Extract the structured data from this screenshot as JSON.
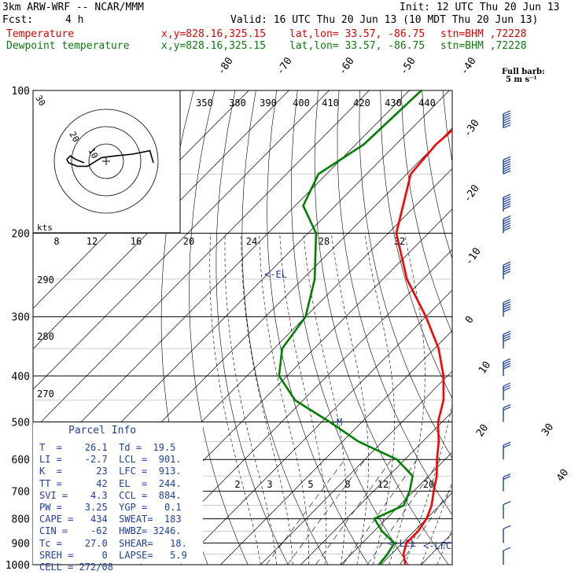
{
  "header": {
    "model": "3km ARW-WRF -- NCAR/MMM",
    "init": "Init: 12 UTC Thu 20 Jun 13",
    "fcst_label": "Fcst:",
    "fcst_value": "4 h",
    "valid": "Valid: 16 UTC Thu 20 Jun 13 (10 MDT Thu 20 Jun 13)",
    "temp_line": {
      "name": "Temperature",
      "xy": "x,y=828.16,325.15",
      "latlon": "lat,lon= 33.57, -86.75",
      "stn": "stn=BHM ,72228"
    },
    "dew_line": {
      "name": "Dewpoint temperature",
      "xy": "x,y=828.16,325.15",
      "latlon": "lat,lon= 33.57, -86.75",
      "stn": "stn=BHM ,72228"
    },
    "barb_label_1": "Full barb:",
    "barb_label_2": "5 m s⁻¹"
  },
  "chart_data": {
    "type": "line",
    "pressure_levels": [
      100,
      200,
      300,
      400,
      500,
      600,
      700,
      800,
      900,
      1000
    ],
    "pressure_labels": [
      "100",
      "200",
      "300",
      "400",
      "500",
      "600",
      "700",
      "800",
      "900",
      "1000"
    ],
    "isotherm_labels": [
      "-80",
      "-70",
      "-60",
      "-50",
      "-40",
      "-30",
      "-20",
      "-10",
      "0",
      "10",
      "20",
      "30",
      "40"
    ],
    "theta_labels_top": [
      "350",
      "380",
      "390",
      "400",
      "410",
      "420",
      "430",
      "440"
    ],
    "mixing_ratio_labels": [
      "2",
      "3",
      "5",
      "8",
      "12",
      "20"
    ],
    "moist_adiabat_labels": [
      "8",
      "12",
      "16",
      "20",
      "24",
      "28",
      "32"
    ],
    "theta_labels_left": [
      "290",
      "280",
      "270"
    ],
    "kts_label": "kts",
    "hodo_labels": [
      "30",
      "20",
      "10"
    ],
    "markers": {
      "el": "<-EL",
      "lcl": "<-LCL",
      "lfc": "<-LFC",
      "m": "M"
    },
    "series": [
      {
        "name": "Temperature",
        "color": "#ff0000",
        "points": [
          [
            100,
            -68
          ],
          [
            130,
            -70
          ],
          [
            150,
            -69
          ],
          [
            200,
            -58
          ],
          [
            250,
            -44
          ],
          [
            300,
            -30
          ],
          [
            350,
            -19
          ],
          [
            400,
            -11
          ],
          [
            450,
            -5
          ],
          [
            500,
            -1
          ],
          [
            550,
            4
          ],
          [
            600,
            8
          ],
          [
            650,
            12
          ],
          [
            700,
            15
          ],
          [
            750,
            18
          ],
          [
            800,
            20
          ],
          [
            850,
            21
          ],
          [
            900,
            21
          ],
          [
            950,
            23
          ],
          [
            1000,
            26.1
          ]
        ]
      },
      {
        "name": "Dewpoint temperature",
        "color": "#008000",
        "points": [
          [
            100,
            -87
          ],
          [
            130,
            -88
          ],
          [
            150,
            -92
          ],
          [
            175,
            -88
          ],
          [
            200,
            -78
          ],
          [
            250,
            -67
          ],
          [
            300,
            -60
          ],
          [
            350,
            -58
          ],
          [
            400,
            -52
          ],
          [
            450,
            -42
          ],
          [
            500,
            -28
          ],
          [
            550,
            -16
          ],
          [
            600,
            -2
          ],
          [
            650,
            6
          ],
          [
            700,
            9
          ],
          [
            750,
            11
          ],
          [
            800,
            7
          ],
          [
            850,
            12
          ],
          [
            900,
            18
          ],
          [
            950,
            19
          ],
          [
            1000,
            19.5
          ]
        ]
      }
    ],
    "wind_barbs": [
      {
        "p": 120,
        "speed_ms": 35
      },
      {
        "p": 150,
        "speed_ms": 35
      },
      {
        "p": 180,
        "speed_ms": 30
      },
      {
        "p": 200,
        "speed_ms": 30
      },
      {
        "p": 250,
        "speed_ms": 25
      },
      {
        "p": 300,
        "speed_ms": 25
      },
      {
        "p": 350,
        "speed_ms": 20
      },
      {
        "p": 400,
        "speed_ms": 20
      },
      {
        "p": 450,
        "speed_ms": 15
      },
      {
        "p": 500,
        "speed_ms": 10
      },
      {
        "p": 600,
        "speed_ms": 10
      },
      {
        "p": 700,
        "speed_ms": 10
      },
      {
        "p": 800,
        "speed_ms": 5
      },
      {
        "p": 900,
        "speed_ms": 5
      },
      {
        "p": 1000,
        "speed_ms": 5
      }
    ],
    "hodograph": [
      [
        0,
        0
      ],
      [
        -5,
        2
      ],
      [
        -8,
        4
      ],
      [
        -10,
        2
      ],
      [
        -9,
        0
      ],
      [
        -4,
        -2
      ],
      [
        2,
        -2
      ],
      [
        10,
        3
      ],
      [
        18,
        4
      ],
      [
        28,
        5
      ],
      [
        38,
        7
      ],
      [
        40,
        0
      ]
    ]
  },
  "parcel_info": {
    "title": "Parcel Info",
    "rows": [
      "T  =    26.1  Td =  19.5",
      "LI =    -2.7  LCL =  901.",
      "K  =      23  LFC =  913.",
      "TT =      42  EL  =  244.",
      "SVI =    4.3  CCL =  884.",
      "PW =    3.25  YGP =   0.1",
      "CAPE =   434  SWEAT=  183",
      "CIN =    -62  HWBZ= 3246.",
      "Tc =    27.0  SHEAR=   18.",
      "SREH =     0  LAPSE=   5.9",
      "CELL = 272/08"
    ]
  }
}
